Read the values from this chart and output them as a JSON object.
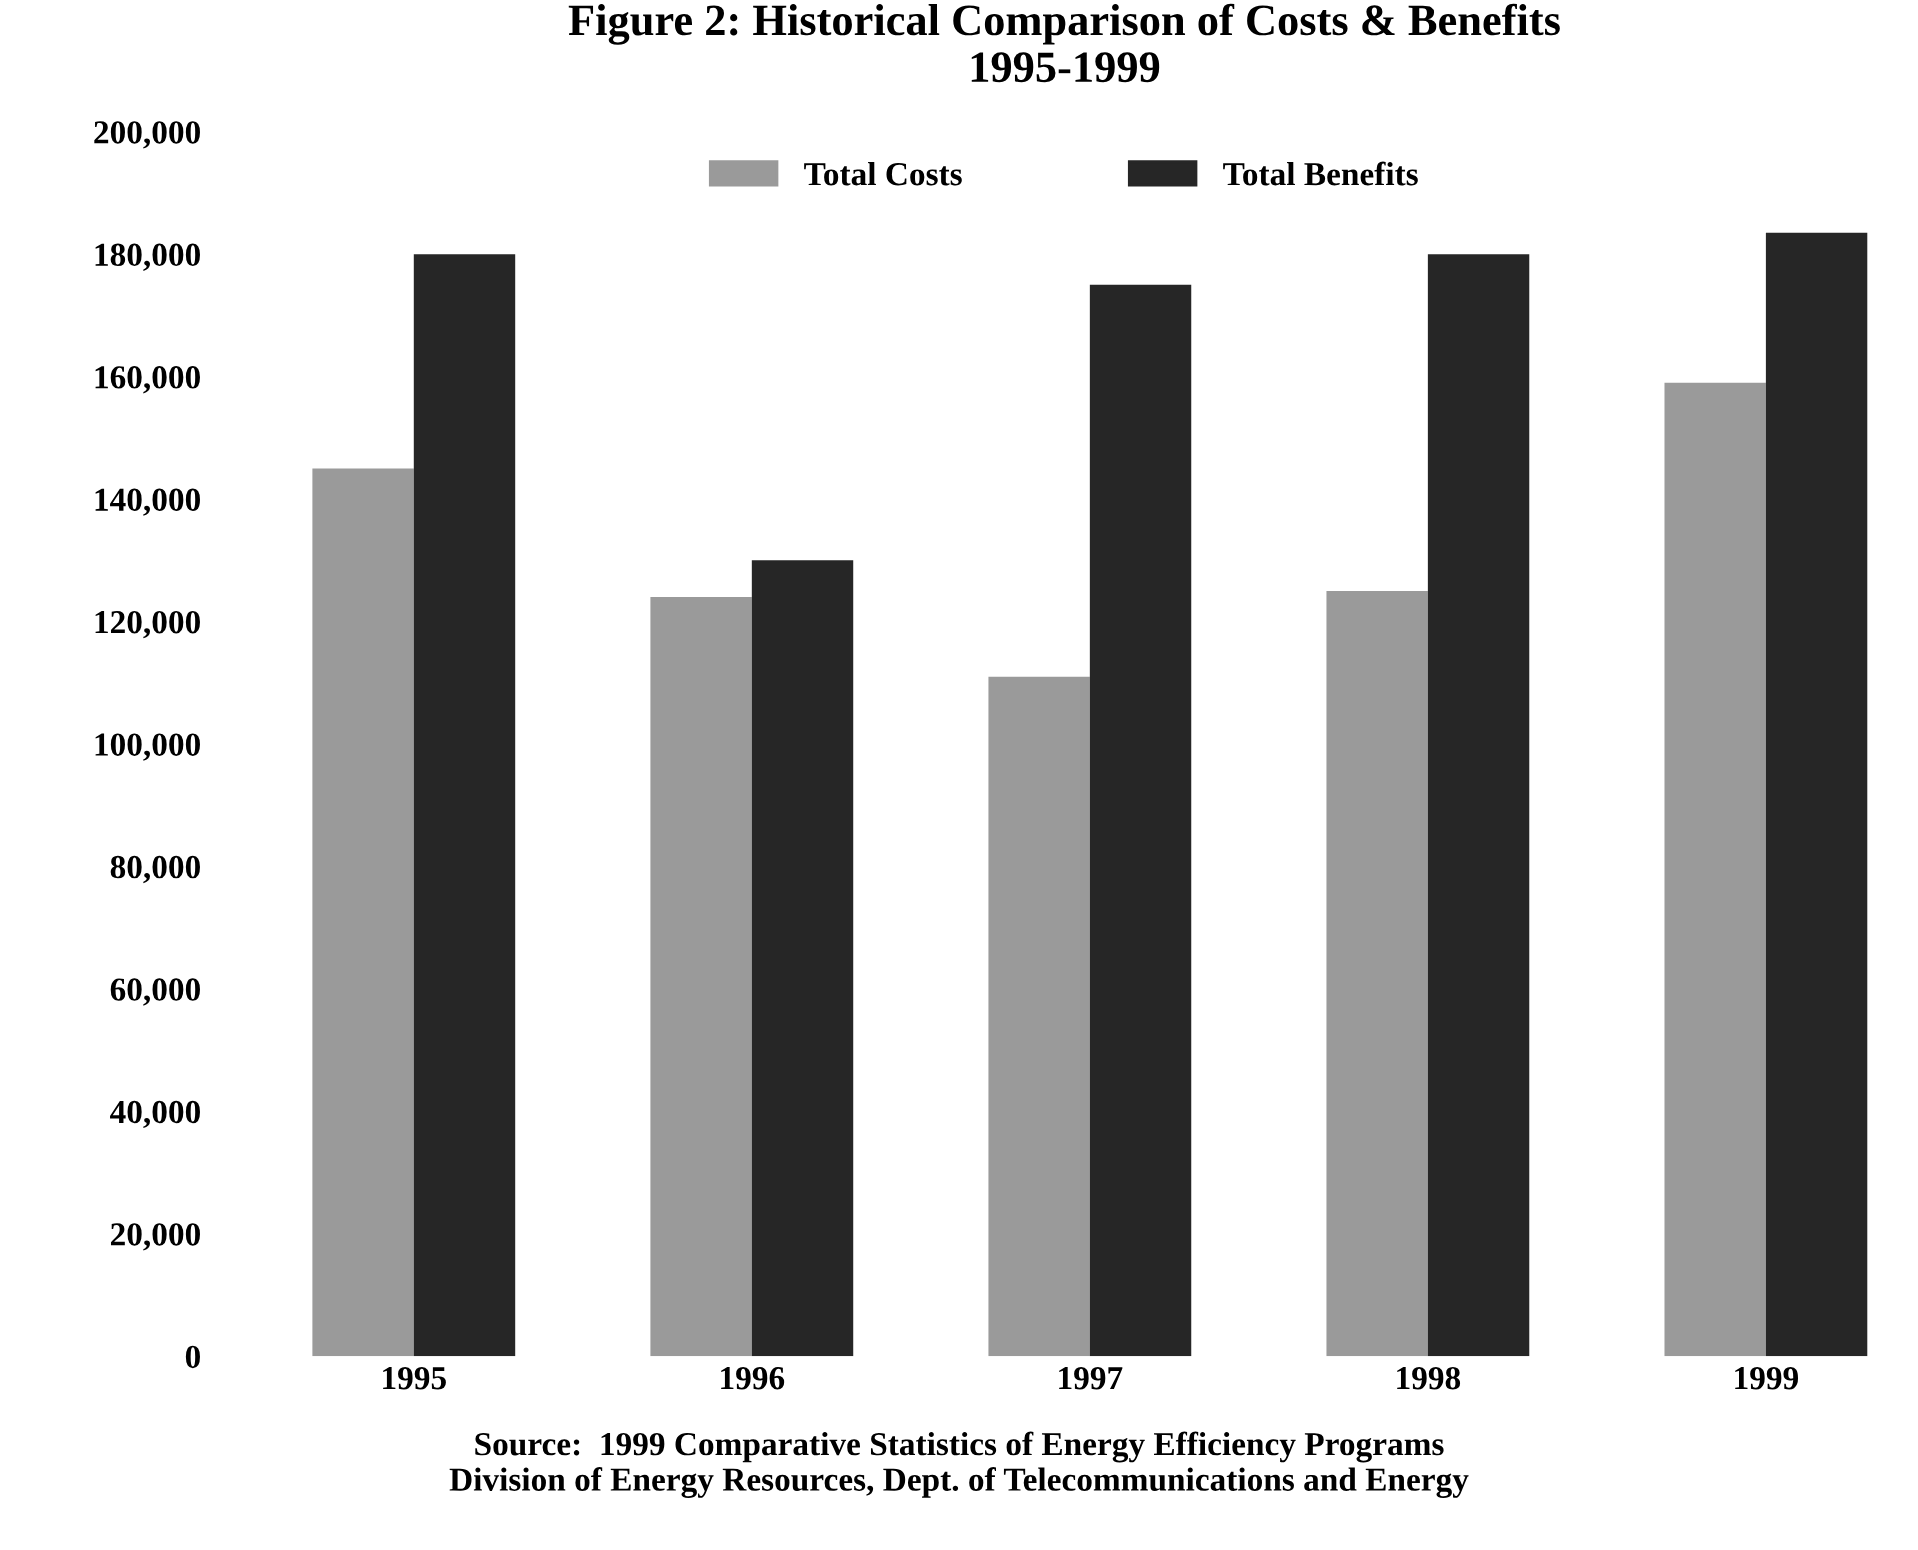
{
  "chart_data": {
    "type": "bar",
    "title": "Figure 2: Historical Comparison of Costs & Benefits\n1995-1999",
    "categories": [
      "1995",
      "1996",
      "1997",
      "1998",
      "1999"
    ],
    "series": [
      {
        "name": "Total Costs",
        "color": "#9a9a9a",
        "values": [
          145000,
          124000,
          111000,
          125000,
          159000
        ]
      },
      {
        "name": "Total Benefits",
        "color": "#262626",
        "values": [
          180000,
          130000,
          175000,
          180000,
          183500
        ]
      }
    ],
    "ylim": [
      0,
      200000
    ],
    "yticks": [
      {
        "value": 0,
        "label": "0"
      },
      {
        "value": 20000,
        "label": "20,000"
      },
      {
        "value": 40000,
        "label": "40,000"
      },
      {
        "value": 60000,
        "label": "60,000"
      },
      {
        "value": 80000,
        "label": "80,000"
      },
      {
        "value": 100000,
        "label": "100,000"
      },
      {
        "value": 120000,
        "label": "120,000"
      },
      {
        "value": 140000,
        "label": "140,000"
      },
      {
        "value": 160000,
        "label": "160,000"
      },
      {
        "value": 180000,
        "label": "180,000"
      },
      {
        "value": 200000,
        "label": "200,000"
      }
    ],
    "grid": false,
    "legend": "top",
    "annotations": [
      "Source:  1999 Comparative Statistics of Energy Efficiency Programs\nDivision of Energy Resources, Dept. of Telecommunications and Energy"
    ]
  }
}
